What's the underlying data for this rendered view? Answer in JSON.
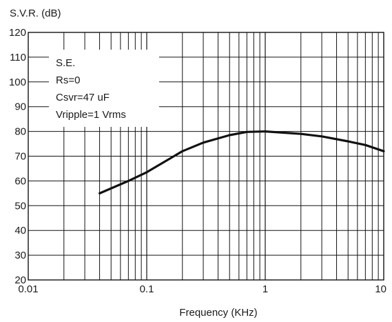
{
  "chart_data": {
    "type": "line",
    "ylabel": "S.V.R. (dB)",
    "xlabel": "Frequency (KHz)",
    "x_scale": "log",
    "xlim": [
      0.01,
      10
    ],
    "ylim": [
      20,
      120
    ],
    "grid": true,
    "x_ticks": [
      {
        "value": 0.01,
        "label": "0.01"
      },
      {
        "value": 0.1,
        "label": "0.1"
      },
      {
        "value": 1,
        "label": "1"
      },
      {
        "value": 10,
        "label": "10"
      }
    ],
    "y_ticks": [
      {
        "value": 20,
        "label": "20"
      },
      {
        "value": 30,
        "label": "30"
      },
      {
        "value": 40,
        "label": "40"
      },
      {
        "value": 50,
        "label": "50"
      },
      {
        "value": 60,
        "label": "60"
      },
      {
        "value": 70,
        "label": "70"
      },
      {
        "value": 80,
        "label": "80"
      },
      {
        "value": 90,
        "label": "90"
      },
      {
        "value": 100,
        "label": "100"
      },
      {
        "value": 110,
        "label": "110"
      },
      {
        "value": 120,
        "label": "120"
      }
    ],
    "annotations": [
      "S.E.",
      "Rs=0",
      "Csvr=47 uF",
      "Vripple=1 Vrms"
    ],
    "series": [
      {
        "color": "#111111",
        "x": [
          0.04,
          0.07,
          0.1,
          0.2,
          0.3,
          0.5,
          0.7,
          1,
          2,
          3,
          5,
          7,
          10
        ],
        "y": [
          55,
          60,
          63.5,
          72,
          75.5,
          78.5,
          79.8,
          80,
          79,
          78,
          76,
          74.5,
          72
        ]
      }
    ]
  }
}
